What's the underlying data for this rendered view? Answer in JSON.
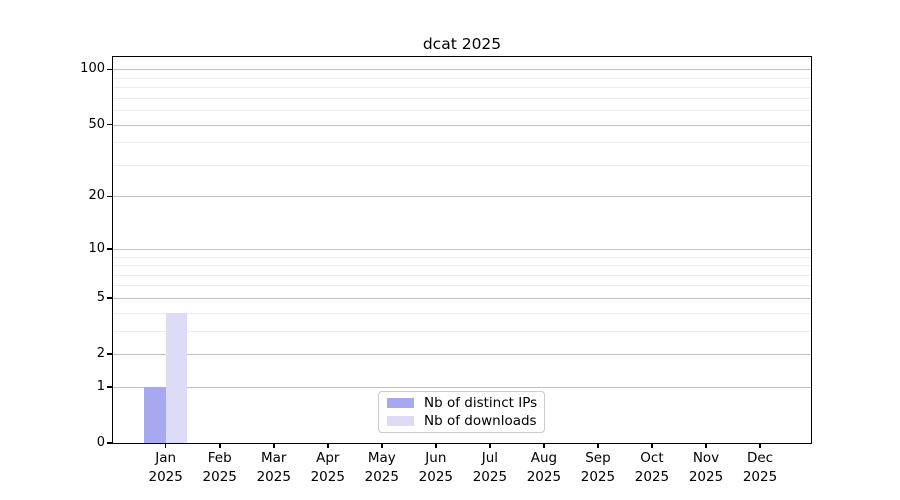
{
  "chart_data": {
    "type": "bar",
    "title": "dcat 2025",
    "categories": [
      "Jan",
      "Feb",
      "Mar",
      "Apr",
      "May",
      "Jun",
      "Jul",
      "Aug",
      "Sep",
      "Oct",
      "Nov",
      "Dec"
    ],
    "x_axis": {
      "year": "2025"
    },
    "y_axis": {
      "ticks": [
        0,
        1,
        2,
        5,
        10,
        20,
        50,
        100
      ],
      "scale": "log1p",
      "range": [
        0,
        116
      ]
    },
    "series": [
      {
        "name": "Nb of distinct IPs",
        "color": "#a8a8f0",
        "values": [
          1,
          0,
          0,
          0,
          0,
          0,
          0,
          0,
          0,
          0,
          0,
          0
        ]
      },
      {
        "name": "Nb of downloads",
        "color": "#dcdcf7",
        "values": [
          4,
          0,
          0,
          0,
          0,
          0,
          0,
          0,
          0,
          0,
          0,
          0
        ]
      }
    ],
    "legend": {
      "position": "bottom-center",
      "entries": [
        "Nb of distinct IPs",
        "Nb of downloads"
      ]
    },
    "grid": true
  },
  "colors": {
    "major_grid": "#c0c0c0",
    "minor_grid": "#ebebeb",
    "frame": "#000000",
    "background": "#ffffff"
  }
}
